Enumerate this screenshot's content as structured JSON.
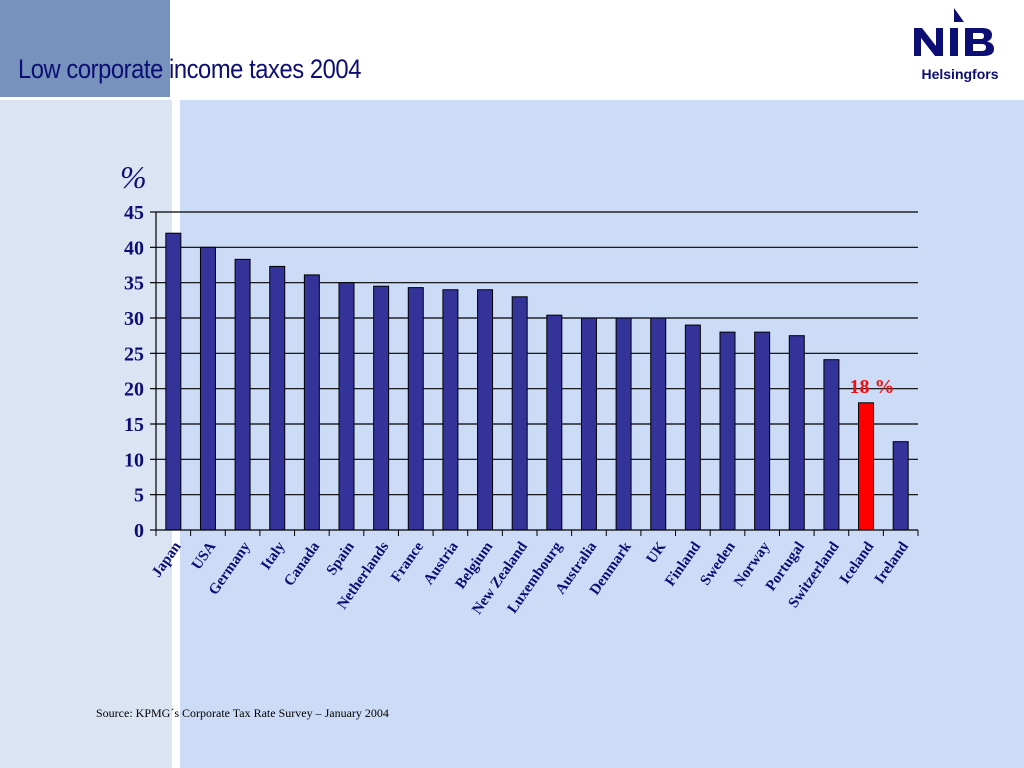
{
  "slide": {
    "title": "Low corporate income taxes 2004",
    "source": "Source: KPMG´s Corporate Tax Rate Survey – January 2004"
  },
  "logo": {
    "mark": "NIB",
    "text": "Helsingfors"
  },
  "colors": {
    "bar": "#333399",
    "highlight": "#ff0000",
    "title": "#0c0e73",
    "panel": "#cddcf6"
  },
  "chart_data": {
    "type": "bar",
    "ylabel": "%",
    "ylim": [
      0,
      45
    ],
    "yticks": [
      0,
      5,
      10,
      15,
      20,
      25,
      30,
      35,
      40,
      45
    ],
    "grid": true,
    "categories": [
      "Japan",
      "USA",
      "Germany",
      "Italy",
      "Canada",
      "Spain",
      "Netherlands",
      "France",
      "Austria",
      "Belgium",
      "New Zealand",
      "Luxembourg",
      "Australia",
      "Denmark",
      "UK",
      "Finland",
      "Sweden",
      "Norway",
      "Portugal",
      "Switzerland",
      "Iceland",
      "Ireland"
    ],
    "values": [
      42,
      40,
      38.3,
      37.3,
      36.1,
      35,
      34.5,
      34.3,
      34,
      34,
      33,
      30.4,
      30,
      30,
      30,
      29,
      28,
      28,
      27.5,
      24.1,
      18,
      12.5
    ],
    "highlight": "Iceland",
    "annotation": "18 %"
  }
}
